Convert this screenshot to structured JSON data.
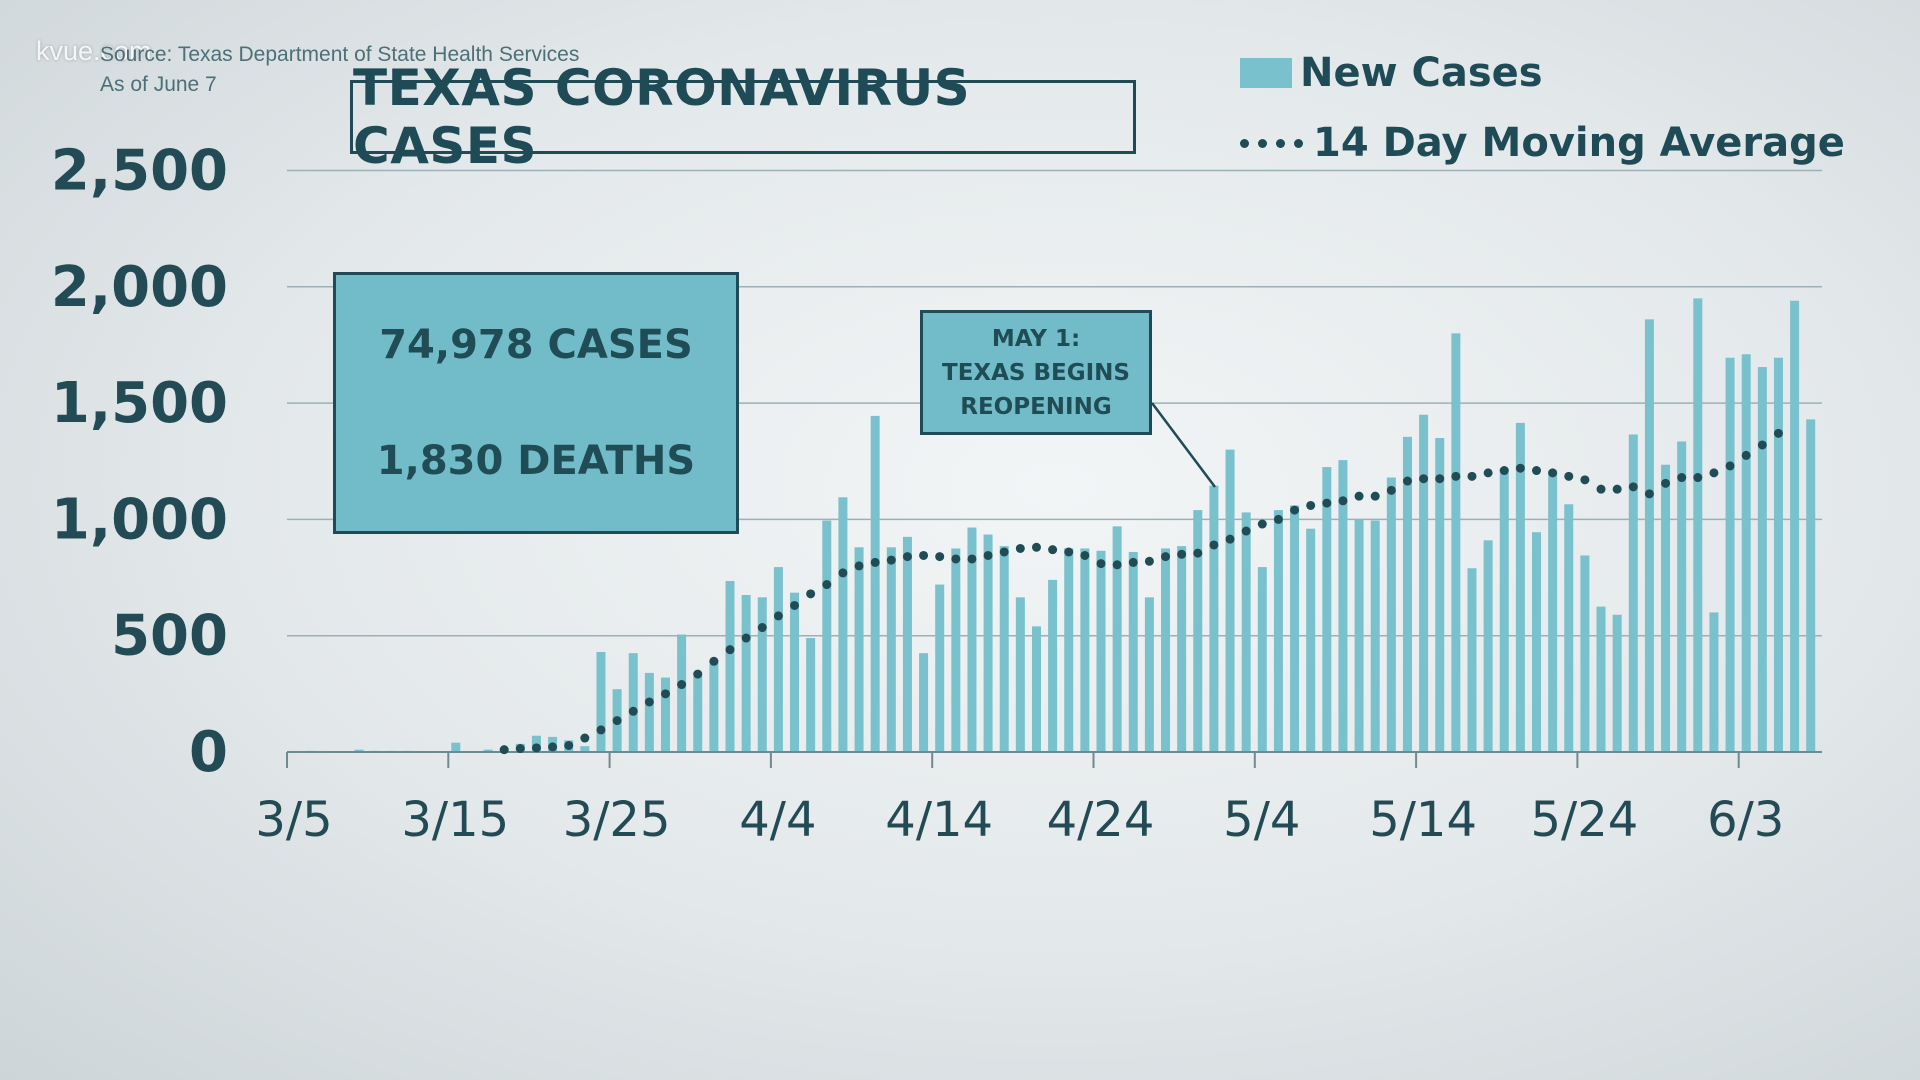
{
  "watermark": "kvue.com",
  "source_line1": "Source: Texas Department of State Health Services",
  "source_line2": "As of June 7",
  "title": "TEXAS CORONAVIRUS CASES",
  "legend": {
    "bars": "New Cases",
    "dots": "14 Day Moving Average"
  },
  "stats": {
    "cases": "74,978 CASES",
    "deaths": "1,830 DEATHS"
  },
  "annotation": {
    "line1": "MAY 1:",
    "line2": "TEXAS BEGINS",
    "line3": "REOPENING",
    "day_index": 57
  },
  "colors": {
    "bar": "#79c1cd",
    "dots": "#1f4c55",
    "text": "#234b55",
    "grid": "#9db0b5"
  },
  "chart_data": {
    "type": "bar",
    "title": "TEXAS CORONAVIRUS CASES",
    "ylim": [
      0,
      2500
    ],
    "yticks": [
      "0",
      "500",
      "1,000",
      "1,500",
      "2,000",
      "2,500"
    ],
    "ytick_values": [
      0,
      500,
      1000,
      1500,
      2000,
      2500
    ],
    "xticks": [
      "3/5",
      "3/15",
      "3/25",
      "4/4",
      "4/14",
      "4/24",
      "5/4",
      "5/14",
      "5/24",
      "6/3"
    ],
    "xtick_days": [
      0,
      10,
      20,
      30,
      40,
      50,
      60,
      70,
      80,
      90
    ],
    "grid": true,
    "legend_position": "top-right",
    "x_start": "3/5",
    "series": [
      {
        "name": "New Cases",
        "type": "bar",
        "values": [
          0,
          5,
          0,
          0,
          10,
          5,
          5,
          5,
          0,
          0,
          40,
          0,
          10,
          15,
          35,
          70,
          65,
          50,
          25,
          430,
          270,
          425,
          340,
          320,
          505,
          325,
          395,
          735,
          675,
          665,
          795,
          685,
          490,
          995,
          1095,
          880,
          1445,
          880,
          925,
          425,
          720,
          875,
          965,
          935,
          885,
          665,
          540,
          740,
          875,
          875,
          865,
          970,
          860,
          665,
          875,
          885,
          1040,
          1145,
          1300,
          1030,
          795,
          1040,
          1060,
          960,
          1225,
          1255,
          1000,
          995,
          1180,
          1355,
          1450,
          1350,
          1800,
          790,
          910,
          1220,
          1415,
          945,
          1210,
          1065,
          845,
          625,
          590,
          1365,
          1860,
          1235,
          1335,
          1950,
          600,
          1695,
          1710,
          1655,
          1695,
          1940,
          1430
        ]
      },
      {
        "name": "14 Day Moving Average",
        "type": "line",
        "style": "dotted",
        "start_day": 13,
        "values": [
          10,
          15,
          18,
          22,
          28,
          60,
          95,
          135,
          175,
          215,
          250,
          290,
          335,
          390,
          440,
          490,
          535,
          585,
          630,
          680,
          720,
          770,
          800,
          815,
          825,
          840,
          845,
          840,
          830,
          830,
          845,
          860,
          875,
          880,
          870,
          860,
          845,
          810,
          805,
          815,
          820,
          840,
          850,
          855,
          890,
          915,
          950,
          980,
          1000,
          1040,
          1060,
          1070,
          1080,
          1100,
          1100,
          1125,
          1165,
          1175,
          1175,
          1185,
          1185,
          1200,
          1210,
          1220,
          1210,
          1200,
          1185,
          1170,
          1130,
          1130,
          1140,
          1110,
          1155,
          1180,
          1180,
          1200,
          1230,
          1275,
          1320,
          1370
        ]
      }
    ]
  }
}
